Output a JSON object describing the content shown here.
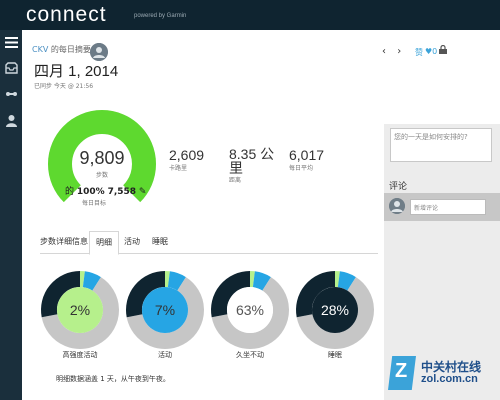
{
  "app": {
    "brand": "connect",
    "powered": "powered by Garmin"
  },
  "header": {
    "user": "CKV",
    "subtitle": "的每日摘要",
    "date": "四月 1, 2014",
    "synced": "已同步 今天 @ 21:56",
    "like": "赞",
    "heart": "♥",
    "like_count": "0"
  },
  "steps": {
    "value": "9,809",
    "label": "步数",
    "goal_progress": 1.0
  },
  "goal": {
    "prefix": "的",
    "percent": "100%",
    "target": "7,558",
    "label": "每日目标"
  },
  "stats": [
    {
      "value": "2,609",
      "label": "卡路里"
    },
    {
      "value": "8.35 公里",
      "label": "距离"
    },
    {
      "value": "6,017",
      "label": "每日平均"
    }
  ],
  "tabs": [
    "步数详细信息",
    "明细",
    "活动",
    "睡眠"
  ],
  "donuts": [
    {
      "label": "高强度活动",
      "value": "2%",
      "center_color": "#b6f08c",
      "text_color": "#333333",
      "pct": 2
    },
    {
      "label": "活动",
      "value": "7%",
      "center_color": "#26a5e4",
      "text_color": "#333333",
      "pct": 7
    },
    {
      "label": "久坐不动",
      "value": "63%",
      "center_color": "#ffffff",
      "text_color": "#555555",
      "pct": 63
    },
    {
      "label": "睡眠",
      "value": "28%",
      "center_color": "#0f2430",
      "text_color": "#ffffff",
      "pct": 28
    }
  ],
  "footnote": "明细数据涵盖 1 天，从午夜到午夜。",
  "comments": {
    "placeholder": "您的一天是如何安排的?",
    "label": "评论",
    "add_placeholder": "新增评论"
  },
  "watermark": {
    "z": "Z",
    "cn": "中关村在线",
    "en": "zol.com.cn"
  },
  "colors": {
    "accent": "#3ba3d9",
    "gauge_green": "#5ed92f",
    "topbar": "#0f2430"
  }
}
